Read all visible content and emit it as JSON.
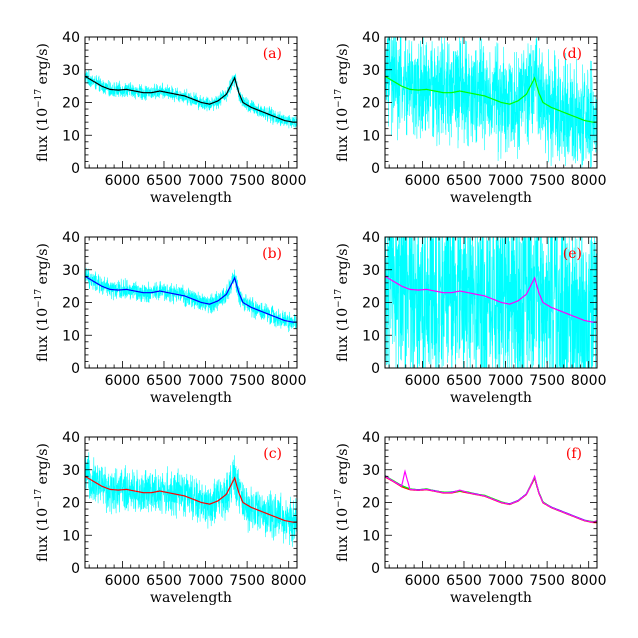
{
  "figure": {
    "x_ticks": [
      6000,
      6500,
      7000,
      7500,
      8000
    ],
    "y_ticks": [
      0,
      10,
      20,
      30,
      40
    ],
    "xlim": [
      5550,
      8100
    ],
    "ylim": [
      0,
      40
    ],
    "xlabel": "wavelength",
    "ylabel_prefix": "flux (10",
    "ylabel_exp": "−17",
    "ylabel_suffix": " erg/s)",
    "letter_color": "#ff0000",
    "noise_color": "#00ffff"
  },
  "chart_data": [
    {
      "type": "line",
      "panel": "a",
      "letter": "(a)",
      "xlabel": "wavelength",
      "ylabel": "flux (10^-17 erg/s)",
      "xlim": [
        5550,
        8100
      ],
      "ylim": [
        0,
        40
      ],
      "noise_amplitude": 2.0,
      "fit_color": "#000000",
      "series": [
        {
          "x": [
            5550,
            5650,
            5750,
            5850,
            5950,
            6050,
            6150,
            6250,
            6350,
            6450,
            6550,
            6650,
            6750,
            6850,
            6950,
            7050,
            7150,
            7250,
            7300,
            7350,
            7400,
            7450,
            7550,
            7650,
            7750,
            7850,
            7950,
            8050,
            8100
          ],
          "y": [
            28,
            26.5,
            25,
            24,
            23.8,
            24,
            23.5,
            23,
            23,
            23.5,
            23,
            22.5,
            22,
            21,
            20,
            19.5,
            20.5,
            22.5,
            25,
            27.5,
            23,
            20,
            18.5,
            17.5,
            16.5,
            15.5,
            14.5,
            14,
            14
          ]
        }
      ]
    },
    {
      "type": "line",
      "panel": "b",
      "letter": "(b)",
      "xlabel": "wavelength",
      "ylabel": "flux (10^-17 erg/s)",
      "xlim": [
        5550,
        8100
      ],
      "ylim": [
        0,
        40
      ],
      "noise_amplitude": 2.6,
      "fit_color": "#0000ff",
      "series": [
        {
          "x": [
            5550,
            5650,
            5750,
            5850,
            5950,
            6050,
            6150,
            6250,
            6350,
            6450,
            6550,
            6650,
            6750,
            6850,
            6950,
            7050,
            7150,
            7250,
            7300,
            7350,
            7400,
            7450,
            7550,
            7650,
            7750,
            7850,
            7950,
            8050,
            8100
          ],
          "y": [
            28,
            26.5,
            25,
            24,
            23.8,
            24,
            23.5,
            23,
            23,
            23.5,
            23,
            22.5,
            22,
            21,
            20,
            19.5,
            20.5,
            22.5,
            25,
            27.5,
            23,
            20,
            18.5,
            17.5,
            16.5,
            15.5,
            14.5,
            14,
            14
          ]
        }
      ]
    },
    {
      "type": "line",
      "panel": "c",
      "letter": "(c)",
      "xlabel": "wavelength",
      "ylabel": "flux (10^-17 erg/s)",
      "xlim": [
        5550,
        8100
      ],
      "ylim": [
        0,
        40
      ],
      "noise_amplitude": 6,
      "fit_color": "#ff0000",
      "series": [
        {
          "x": [
            5550,
            5650,
            5750,
            5850,
            5950,
            6050,
            6150,
            6250,
            6350,
            6450,
            6550,
            6650,
            6750,
            6850,
            6950,
            7050,
            7150,
            7250,
            7300,
            7350,
            7400,
            7450,
            7550,
            7650,
            7750,
            7850,
            7950,
            8050,
            8100
          ],
          "y": [
            28,
            26.5,
            25,
            24,
            23.8,
            24,
            23.5,
            23,
            23,
            23.5,
            23,
            22.5,
            22,
            21,
            20,
            19.5,
            20.5,
            22.5,
            25,
            27.5,
            23,
            20,
            18.5,
            17.5,
            16.5,
            15.5,
            14.5,
            14,
            14
          ]
        }
      ]
    },
    {
      "type": "line",
      "panel": "d",
      "letter": "(d)",
      "xlabel": "wavelength",
      "ylabel": "flux (10^-17 erg/s)",
      "xlim": [
        5550,
        8100
      ],
      "ylim": [
        0,
        40
      ],
      "noise_amplitude": 14,
      "fit_color": "#00ff00",
      "series": [
        {
          "x": [
            5550,
            5650,
            5750,
            5850,
            5950,
            6050,
            6150,
            6250,
            6350,
            6450,
            6550,
            6650,
            6750,
            6850,
            6950,
            7050,
            7150,
            7250,
            7300,
            7350,
            7400,
            7450,
            7550,
            7650,
            7750,
            7850,
            7950,
            8050,
            8100
          ],
          "y": [
            28,
            26.5,
            25,
            24,
            23.8,
            24,
            23.5,
            23,
            23,
            23.5,
            23,
            22.5,
            22,
            21,
            20,
            19.5,
            20.5,
            22.5,
            25,
            27.5,
            23,
            20,
            18.5,
            17.5,
            16.5,
            15.5,
            14.5,
            14,
            14
          ]
        }
      ]
    },
    {
      "type": "line",
      "panel": "e",
      "letter": "(e)",
      "xlabel": "wavelength",
      "ylabel": "flux (10^-17 erg/s)",
      "xlim": [
        5550,
        8100
      ],
      "ylim": [
        0,
        40
      ],
      "noise_amplitude": 26,
      "fit_color": "#ff00ff",
      "series": [
        {
          "x": [
            5550,
            5650,
            5750,
            5850,
            5950,
            6050,
            6150,
            6250,
            6350,
            6450,
            6550,
            6650,
            6750,
            6850,
            6950,
            7050,
            7150,
            7250,
            7300,
            7350,
            7400,
            7450,
            7550,
            7650,
            7750,
            7850,
            7950,
            8050,
            8100
          ],
          "y": [
            28,
            26.5,
            25,
            24,
            23.8,
            24,
            23.5,
            23,
            23,
            23.5,
            23,
            22.5,
            22,
            21,
            20,
            19.5,
            20.5,
            22.5,
            25,
            27.5,
            23,
            20,
            18.5,
            17.5,
            16.5,
            15.5,
            14.5,
            14,
            14
          ]
        }
      ]
    },
    {
      "type": "line",
      "panel": "f",
      "letter": "(f)",
      "xlabel": "wavelength",
      "ylabel": "flux (10^-17 erg/s)",
      "xlim": [
        5550,
        8100
      ],
      "ylim": [
        0,
        40
      ],
      "noise_amplitude": 0,
      "fit_color": "#000000",
      "series": [
        {
          "color": "#000000",
          "x": [
            5550,
            5650,
            5750,
            5850,
            5950,
            6050,
            6150,
            6250,
            6350,
            6450,
            6550,
            6650,
            6750,
            6850,
            6950,
            7050,
            7150,
            7250,
            7300,
            7350,
            7400,
            7450,
            7550,
            7650,
            7750,
            7850,
            7950,
            8050,
            8100
          ],
          "y": [
            28,
            26.5,
            25,
            24,
            23.8,
            24,
            23.5,
            23,
            23,
            23.5,
            23,
            22.5,
            22,
            21,
            20,
            19.5,
            20.5,
            22.5,
            25,
            27.5,
            23,
            20,
            18.5,
            17.5,
            16.5,
            15.5,
            14.5,
            14,
            14
          ]
        },
        {
          "color": "#0000ff",
          "x": [
            5550,
            5650,
            5750,
            5850,
            5950,
            6050,
            6150,
            6250,
            6350,
            6450,
            6550,
            6650,
            6750,
            6850,
            6950,
            7050,
            7150,
            7250,
            7300,
            7350,
            7400,
            7450,
            7550,
            7650,
            7750,
            7850,
            7950,
            8050,
            8100
          ],
          "y": [
            28.2,
            26.6,
            25.2,
            24.1,
            23.9,
            24.1,
            23.6,
            23.1,
            23.2,
            23.6,
            23.1,
            22.6,
            22.1,
            21.1,
            20.1,
            19.6,
            20.6,
            22.6,
            25.1,
            27.7,
            23.1,
            20.1,
            18.6,
            17.6,
            16.6,
            15.6,
            14.6,
            14.1,
            14.2
          ]
        },
        {
          "color": "#ff0000",
          "x": [
            5550,
            5650,
            5750,
            5850,
            5950,
            6050,
            6150,
            6250,
            6350,
            6450,
            6550,
            6650,
            6750,
            6850,
            6950,
            7050,
            7150,
            7250,
            7300,
            7350,
            7400,
            7450,
            7550,
            7650,
            7750,
            7850,
            7950,
            8050,
            8100
          ],
          "y": [
            27.8,
            26.4,
            24.8,
            23.9,
            23.7,
            23.9,
            23.4,
            22.9,
            22.9,
            23.4,
            22.9,
            22.4,
            21.9,
            20.9,
            19.9,
            19.4,
            20.4,
            22.4,
            24.9,
            27.4,
            22.9,
            19.9,
            18.4,
            17.4,
            16.4,
            15.4,
            14.4,
            13.9,
            13.8
          ]
        },
        {
          "color": "#00ff00",
          "x": [
            5550,
            5650,
            5750,
            5850,
            5950,
            6050,
            6150,
            6250,
            6350,
            6450,
            6550,
            6650,
            6750,
            6850,
            6950,
            7050,
            7150,
            7250,
            7300,
            7350,
            7400,
            7450,
            7550,
            7650,
            7750,
            7850,
            7950,
            8050,
            8100
          ],
          "y": [
            28.1,
            26.7,
            25.1,
            24.2,
            23.8,
            24.2,
            23.5,
            23.2,
            23.1,
            23.5,
            23.2,
            22.5,
            22.2,
            21.2,
            20.2,
            19.5,
            20.5,
            22.5,
            25.2,
            27.6,
            23.2,
            20.2,
            18.5,
            17.5,
            16.5,
            15.5,
            14.5,
            14.2,
            14.1
          ]
        },
        {
          "color": "#ff00ff",
          "x": [
            5550,
            5650,
            5750,
            5790,
            5850,
            5950,
            6050,
            6150,
            6250,
            6350,
            6450,
            6550,
            6650,
            6750,
            6850,
            6950,
            7050,
            7150,
            7250,
            7300,
            7350,
            7400,
            7450,
            7550,
            7650,
            7750,
            7850,
            7950,
            8050,
            8100
          ],
          "y": [
            28,
            26.5,
            25,
            29.5,
            24,
            23.8,
            24,
            23.5,
            23,
            23,
            23.8,
            23,
            22.5,
            22,
            21,
            20,
            19.5,
            20.5,
            22.5,
            25,
            28,
            23,
            20,
            18.5,
            17.5,
            16.5,
            15.5,
            14.5,
            14,
            14.5
          ]
        }
      ]
    }
  ]
}
